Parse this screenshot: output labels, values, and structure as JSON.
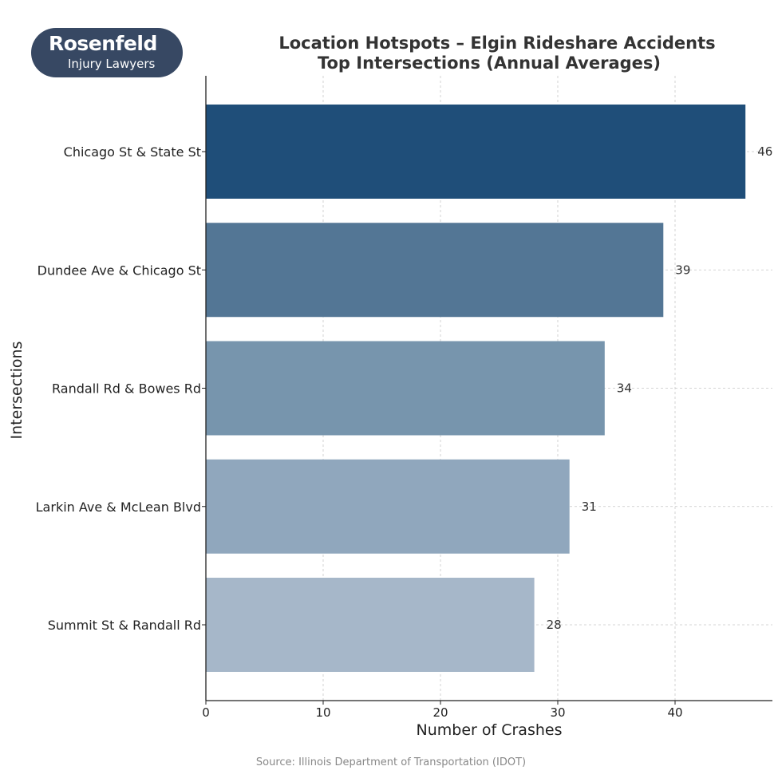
{
  "logo": {
    "brand": "Rosenfeld",
    "sub": "Injury Lawyers"
  },
  "chart_data": {
    "type": "bar",
    "orientation": "horizontal",
    "title": "Location Hotspots – Elgin Rideshare Accidents",
    "subtitle": "Top Intersections (Annual Averages)",
    "xlabel": "Number of Crashes",
    "ylabel": "Intersections",
    "categories": [
      "Chicago St & State St",
      "Dundee Ave & Chicago St",
      "Randall Rd & Bowes Rd",
      "Larkin Ave & McLean Blvd",
      "Summit St & Randall Rd"
    ],
    "values": [
      46,
      39,
      34,
      31,
      28
    ],
    "colors": [
      "#1f4e79",
      "#537695",
      "#7795ad",
      "#90a7bd",
      "#a6b7c9"
    ],
    "xlim": [
      0,
      48
    ],
    "xticks": [
      0,
      10,
      20,
      30,
      40
    ],
    "grid": true,
    "source": "Source: Illinois Department of Transportation (IDOT)"
  }
}
